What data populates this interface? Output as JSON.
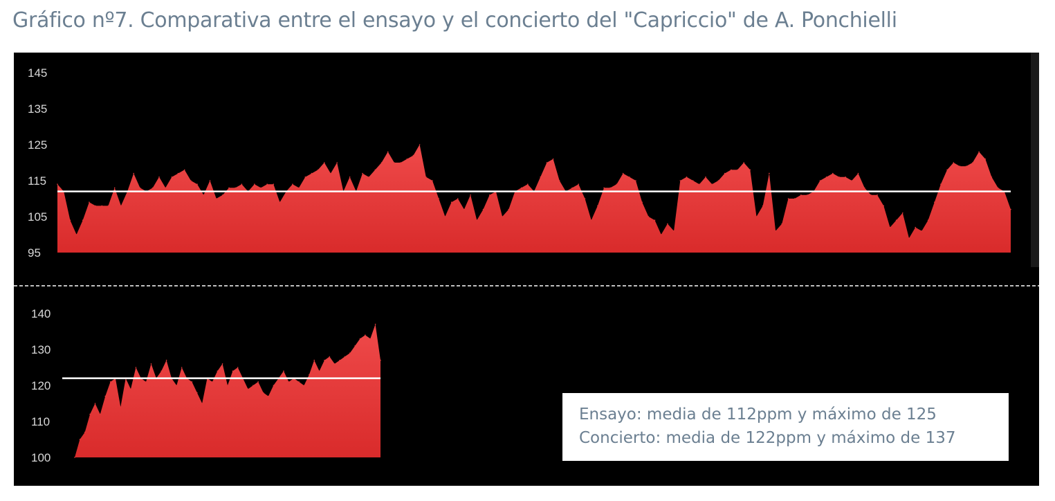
{
  "title": "Gráfico nº7. Comparativa entre el ensayo y el concierto del \"Capriccio\" de A. Ponchielli",
  "legend": {
    "line1": "Ensayo: media de 112ppm y máximo de 125",
    "line2": "Concierto: media de 122ppm y máximo de 137"
  },
  "colors": {
    "area": "#e03a3a",
    "mean_line": "#ffffff",
    "background": "#000000"
  },
  "chart_data": [
    {
      "type": "area",
      "name_hint": "ensayo",
      "yticks": [
        95,
        105,
        115,
        125,
        135,
        145
      ],
      "ylim": [
        95,
        145
      ],
      "mean": 112,
      "x": [
        0,
        1,
        2,
        3,
        4,
        5,
        6,
        7,
        8,
        9,
        10,
        11,
        12,
        13,
        14,
        15,
        16,
        17,
        18,
        19,
        20,
        21,
        22,
        23,
        24,
        25,
        26,
        27,
        28,
        29,
        30,
        31,
        32,
        33,
        34,
        35,
        36,
        37,
        38,
        39,
        40,
        41,
        42,
        43,
        44,
        45,
        46,
        47,
        48,
        49,
        50,
        51,
        52,
        53,
        54,
        55,
        56,
        57,
        58,
        59,
        60,
        61,
        62,
        63,
        64,
        65,
        66,
        67,
        68,
        69,
        70,
        71,
        72,
        73,
        74,
        75,
        76,
        77,
        78,
        79,
        80,
        81,
        82,
        83,
        84,
        85,
        86,
        87,
        88,
        89,
        90,
        91,
        92,
        93,
        94,
        95,
        96,
        97,
        98,
        99,
        100,
        101,
        102,
        103,
        104,
        105,
        106,
        107,
        108,
        109,
        110,
        111,
        112,
        113,
        114,
        115,
        116,
        117,
        118,
        119,
        120,
        121,
        122,
        123,
        124,
        125,
        126,
        127,
        128,
        129,
        130,
        131,
        132,
        133,
        134,
        135,
        136,
        137,
        138,
        139,
        140,
        141,
        142,
        143,
        144,
        145,
        146,
        147,
        148,
        149,
        150
      ],
      "values": [
        114,
        112,
        104,
        100,
        104,
        109,
        108,
        108,
        108,
        113,
        108,
        112,
        117,
        113,
        112,
        113,
        116,
        113,
        116,
        117,
        118,
        115,
        114,
        111,
        115,
        110,
        111,
        113,
        113,
        114,
        112,
        114,
        113,
        114,
        114,
        109,
        112,
        114,
        113,
        116,
        117,
        118,
        120,
        117,
        120,
        112,
        116,
        112,
        117,
        116,
        118,
        120,
        123,
        120,
        120,
        121,
        122,
        125,
        116,
        115,
        110,
        105,
        109,
        110,
        107,
        111,
        104,
        107,
        111,
        112,
        105,
        107,
        112,
        113,
        114,
        112,
        116,
        120,
        121,
        115,
        112,
        113,
        114,
        110,
        104,
        108,
        113,
        113,
        114,
        117,
        116,
        115,
        109,
        105,
        104,
        100,
        103,
        101,
        115,
        116,
        115,
        114,
        116,
        114,
        115,
        117,
        118,
        118,
        120,
        118,
        105,
        108,
        117,
        101,
        103,
        110,
        110,
        111,
        111,
        112,
        115,
        116,
        117,
        116,
        116,
        115,
        117,
        113,
        111,
        111,
        108,
        102,
        104,
        106,
        99,
        102,
        101,
        104,
        109,
        114,
        118,
        120,
        119,
        119,
        120,
        123,
        121,
        116,
        113,
        112,
        107
      ]
    },
    {
      "type": "area",
      "name_hint": "concierto",
      "yticks": [
        100,
        110,
        120,
        130,
        140
      ],
      "ylim": [
        100,
        140
      ],
      "mean": 122,
      "x": [
        0,
        1,
        2,
        3,
        4,
        5,
        6,
        7,
        8,
        9,
        10,
        11,
        12,
        13,
        14,
        15,
        16,
        17,
        18,
        19,
        20,
        21,
        22,
        23,
        24,
        25,
        26,
        27,
        28,
        29,
        30,
        31,
        32,
        33,
        34,
        35,
        36,
        37,
        38,
        39,
        40,
        41,
        42,
        43,
        44,
        45,
        46,
        47,
        48,
        49,
        50,
        51,
        52,
        53,
        54,
        55,
        56,
        57,
        58,
        59,
        60
      ],
      "values": [
        100,
        105,
        107,
        112,
        115,
        112,
        117,
        121,
        122,
        114,
        122,
        119,
        125,
        122,
        121,
        126,
        122,
        124,
        127,
        122,
        120,
        125,
        122,
        121,
        118,
        115,
        122,
        121,
        124,
        126,
        120,
        124,
        125,
        122,
        119,
        120,
        121,
        118,
        117,
        120,
        122,
        124,
        121,
        122,
        121,
        120,
        123,
        127,
        124,
        127,
        128,
        126,
        127,
        128,
        129,
        131,
        133,
        134,
        133,
        137,
        127
      ]
    }
  ]
}
